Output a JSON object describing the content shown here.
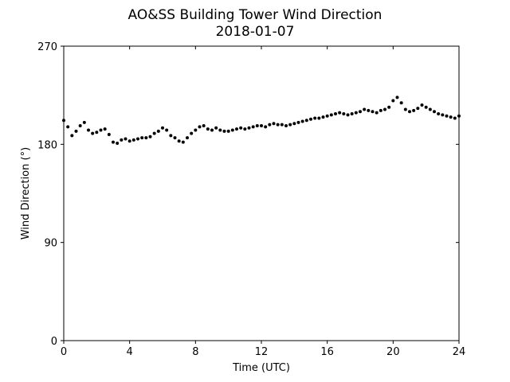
{
  "chart_data": {
    "type": "scatter",
    "title": "AO&SS Building Tower Wind Direction",
    "subtitle": "2018-01-07",
    "xlabel": "Time (UTC)",
    "ylabel": "Wind Direction (°)",
    "xlim": [
      0,
      24
    ],
    "ylim": [
      0,
      270
    ],
    "xticks": [
      0,
      4,
      8,
      12,
      16,
      20,
      24
    ],
    "yticks": [
      0,
      90,
      180,
      270
    ],
    "grid": false,
    "legend": "none",
    "marker_color": "#000000",
    "series": [
      {
        "x": [
          0.0,
          0.25,
          0.5,
          0.75,
          1.0,
          1.25,
          1.5,
          1.75,
          2.0,
          2.25,
          2.5,
          2.75,
          3.0,
          3.25,
          3.5,
          3.75,
          4.0,
          4.25,
          4.5,
          4.75,
          5.0,
          5.25,
          5.5,
          5.75,
          6.0,
          6.25,
          6.5,
          6.75,
          7.0,
          7.25,
          7.5,
          7.75,
          8.0,
          8.25,
          8.5,
          8.75,
          9.0,
          9.25,
          9.5,
          9.75,
          10.0,
          10.25,
          10.5,
          10.75,
          11.0,
          11.25,
          11.5,
          11.75,
          12.0,
          12.25,
          12.5,
          12.75,
          13.0,
          13.25,
          13.5,
          13.75,
          14.0,
          14.25,
          14.5,
          14.75,
          15.0,
          15.25,
          15.5,
          15.75,
          16.0,
          16.25,
          16.5,
          16.75,
          17.0,
          17.25,
          17.5,
          17.75,
          18.0,
          18.25,
          18.5,
          18.75,
          19.0,
          19.25,
          19.5,
          19.75,
          20.0,
          20.25,
          20.5,
          20.75,
          21.0,
          21.25,
          21.5,
          21.75,
          22.0,
          22.25,
          22.5,
          22.75,
          23.0,
          23.25,
          23.5,
          23.75,
          24.0
        ],
        "y": [
          202,
          196,
          188,
          192,
          197,
          200,
          193,
          190,
          191,
          193,
          194,
          189,
          182,
          181,
          184,
          185,
          183,
          184,
          185,
          186,
          186,
          187,
          190,
          192,
          195,
          193,
          188,
          186,
          183,
          182,
          186,
          190,
          193,
          196,
          197,
          194,
          193,
          195,
          193,
          192,
          192,
          193,
          194,
          195,
          194,
          195,
          196,
          197,
          197,
          196,
          198,
          199,
          198,
          198,
          197,
          198,
          199,
          200,
          201,
          202,
          203,
          204,
          204,
          205,
          206,
          207,
          208,
          209,
          208,
          207,
          208,
          209,
          210,
          212,
          211,
          210,
          209,
          211,
          212,
          214,
          220,
          223,
          218,
          212,
          210,
          211,
          213,
          216,
          214,
          212,
          210,
          208,
          207,
          206,
          205,
          204,
          206
        ]
      }
    ]
  }
}
